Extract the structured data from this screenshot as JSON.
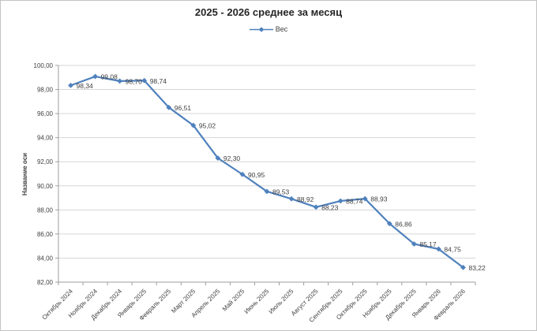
{
  "chart": {
    "title": "2025 - 2026 среднее за месяц",
    "legend_label": "Вес",
    "y_axis_title": "Название оси"
  },
  "colors": {
    "series": "#4F81BD",
    "gridline": "#D6D6D6",
    "axis": "#9E9E9E",
    "text": "#3F3F3F",
    "frame_border": "#C3C3C3",
    "background": "#FFFFFF"
  },
  "chart_data": {
    "type": "line",
    "title": "2025 - 2026 среднее за месяц",
    "xlabel": "",
    "ylabel": "Название оси",
    "legend_entries": [
      "Вес"
    ],
    "legend_position": "top-center",
    "grid": true,
    "ylim": [
      82,
      100
    ],
    "ytick_step": 2,
    "ytick_labels": [
      "100,00",
      "98,00",
      "96,00",
      "94,00",
      "92,00",
      "90,00",
      "88,00",
      "86,00",
      "84,00",
      "82,00"
    ],
    "categories": [
      "Октябрь 2024",
      "Ноябрь 2024",
      "Декабрь 2024",
      "Январь 2025",
      "Февраль 2025",
      "Март 2025",
      "Апрель 2025",
      "Май 2025",
      "Июнь 2025",
      "Июль 2025",
      "Август 2025",
      "Сентябрь 2025",
      "Октябрь 2025",
      "Ноябрь 2025",
      "Декабрь 2025",
      "Январь 2026",
      "Февраль 2026"
    ],
    "series": [
      {
        "name": "Вес",
        "color": "#4F81BD",
        "marker": "diamond",
        "values": [
          98.34,
          99.08,
          98.7,
          98.74,
          96.51,
          95.02,
          92.3,
          90.95,
          89.53,
          88.92,
          88.23,
          88.74,
          88.93,
          86.86,
          85.17,
          84.75,
          83.22
        ],
        "point_labels": [
          "98,34",
          "99,08",
          "98,70",
          "98,74",
          "96,51",
          "95,02",
          "92,30",
          "90,95",
          "89,53",
          "88,92",
          "88,23",
          "88,74",
          "88,93",
          "86,86",
          "85,17",
          "84,75",
          "83,22"
        ]
      }
    ]
  }
}
